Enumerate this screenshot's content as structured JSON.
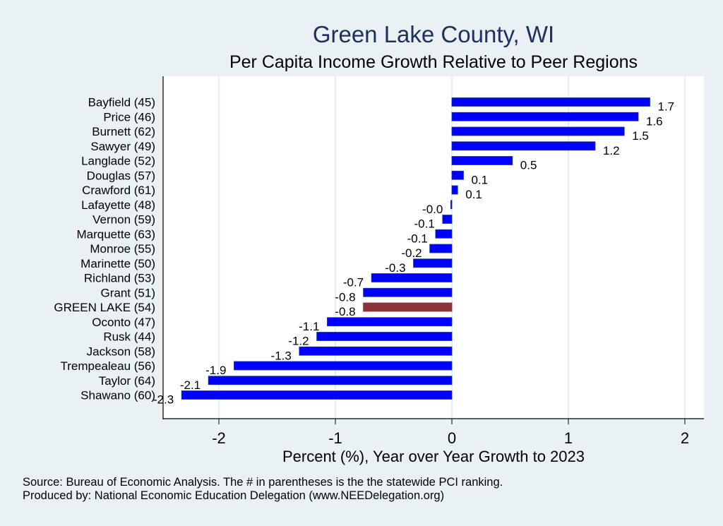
{
  "chart_data": {
    "type": "bar",
    "orientation": "horizontal",
    "title": "Green Lake County, WI",
    "subtitle": "Per Capita Income Growth Relative to Peer Regions",
    "xlabel": "Percent (%), Year over Year Growth to 2023",
    "ylabel": "",
    "xlim": [
      -2.45,
      2.15
    ],
    "xticks": [
      -2,
      -1,
      0,
      1,
      2
    ],
    "grid": true,
    "categories": [
      "Bayfield (45)",
      "Price (46)",
      "Burnett (62)",
      "Sawyer (49)",
      "Langlade (52)",
      "Douglas (57)",
      "Crawford (61)",
      "Lafayette (48)",
      "Vernon (59)",
      "Marquette (63)",
      "Monroe (55)",
      "Marinette (50)",
      "Richland (53)",
      "Grant (51)",
      "GREEN LAKE (54)",
      "Oconto (47)",
      "Rusk (44)",
      "Jackson (58)",
      "Trempealeau (56)",
      "Taylor (64)",
      "Shawano (60)"
    ],
    "values": [
      1.7,
      1.6,
      1.48,
      1.23,
      0.52,
      0.1,
      0.05,
      -0.01,
      -0.08,
      -0.14,
      -0.19,
      -0.33,
      -0.69,
      -0.76,
      -0.76,
      -1.07,
      -1.16,
      -1.31,
      -1.87,
      -2.09,
      -2.32
    ],
    "value_labels": [
      "1.7",
      "1.6",
      "1.5",
      "1.2",
      "0.5",
      "0.1",
      "0.1",
      "-0.0",
      "-0.1",
      "-0.1",
      "-0.2",
      "-0.3",
      "-0.7",
      "-0.8",
      "-0.8",
      "-1.1",
      "-1.2",
      "-1.3",
      "-1.9",
      "-2.1",
      "-2.3"
    ],
    "highlight_index": 14,
    "colors": {
      "bar": "#0000ff",
      "bar_edge": "#1a3a8c",
      "highlight": "#8b3439",
      "grid": "#e6eef2",
      "background": "#eaf1f4",
      "plot_background": "#ffffff",
      "title": "#1e3060"
    }
  },
  "notes": {
    "source": "Source: Bureau of Economic Analysis. The # in parentheses is the the statewide PCI ranking.",
    "produced_by": "Produced by: National Economic Education Delegation (www.NEEDelegation.org)"
  }
}
